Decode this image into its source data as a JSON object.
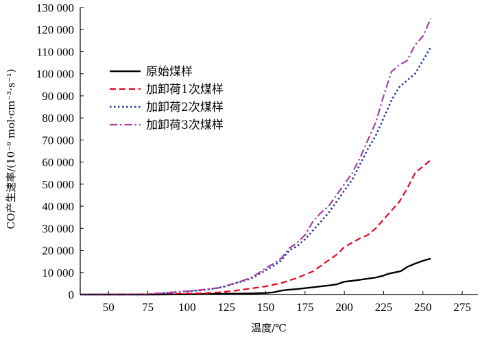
{
  "chart_data": {
    "type": "line",
    "xlabel": "温度/℃",
    "ylabel": "CO产生速率/(10⁻⁹ mol·cm⁻³·s⁻¹)",
    "xlim": [
      32,
      285
    ],
    "ylim": [
      0,
      130000
    ],
    "xticks": [
      50,
      75,
      100,
      125,
      150,
      175,
      200,
      225,
      250,
      275
    ],
    "xtick_labels": [
      "50",
      "75",
      "100",
      "125",
      "150",
      "175",
      "200",
      "225",
      "250",
      "275"
    ],
    "yticks": [
      0,
      10000,
      20000,
      30000,
      40000,
      50000,
      60000,
      70000,
      80000,
      90000,
      100000,
      110000,
      120000,
      130000
    ],
    "ytick_labels": [
      "0",
      "10 000",
      "20 000",
      "30 000",
      "40 000",
      "50 000",
      "60 000",
      "70 000",
      "80 000",
      "90 000",
      "100 000",
      "110 000",
      "120 000",
      "130 000"
    ],
    "grid": false,
    "legend_position": "upper-left",
    "series": [
      {
        "name": "原始煤样",
        "color": "#000000",
        "dash": "solid",
        "points": [
          [
            32,
            0
          ],
          [
            80,
            0
          ],
          [
            100,
            100
          ],
          [
            120,
            300
          ],
          [
            140,
            500
          ],
          [
            150,
            700
          ],
          [
            155,
            1000
          ],
          [
            160,
            1800
          ],
          [
            165,
            2200
          ],
          [
            170,
            2500
          ],
          [
            175,
            2900
          ],
          [
            180,
            3300
          ],
          [
            185,
            3700
          ],
          [
            190,
            4100
          ],
          [
            195,
            4600
          ],
          [
            200,
            5800
          ],
          [
            205,
            6200
          ],
          [
            210,
            6700
          ],
          [
            215,
            7200
          ],
          [
            220,
            7700
          ],
          [
            225,
            8600
          ],
          [
            228,
            9400
          ],
          [
            232,
            10000
          ],
          [
            236,
            10600
          ],
          [
            240,
            12500
          ],
          [
            245,
            14000
          ],
          [
            250,
            15300
          ],
          [
            255,
            16300
          ]
        ]
      },
      {
        "name": "加卸荷1次煤样",
        "color": "#e8001c",
        "dash": "dashed",
        "points": [
          [
            32,
            0
          ],
          [
            80,
            200
          ],
          [
            100,
            400
          ],
          [
            110,
            600
          ],
          [
            120,
            1000
          ],
          [
            130,
            1700
          ],
          [
            140,
            2700
          ],
          [
            150,
            3700
          ],
          [
            160,
            5200
          ],
          [
            170,
            7500
          ],
          [
            180,
            10500
          ],
          [
            185,
            13000
          ],
          [
            190,
            15500
          ],
          [
            195,
            18000
          ],
          [
            200,
            21500
          ],
          [
            205,
            23500
          ],
          [
            210,
            25500
          ],
          [
            215,
            27000
          ],
          [
            220,
            30000
          ],
          [
            225,
            34000
          ],
          [
            230,
            38000
          ],
          [
            235,
            42000
          ],
          [
            240,
            48000
          ],
          [
            245,
            55000
          ],
          [
            250,
            58000
          ],
          [
            255,
            61000
          ]
        ]
      },
      {
        "name": "加卸荷2次煤样",
        "color": "#1d3aa8",
        "dash": "dotted",
        "points": [
          [
            32,
            0
          ],
          [
            75,
            0
          ],
          [
            80,
            400
          ],
          [
            90,
            900
          ],
          [
            100,
            1500
          ],
          [
            110,
            2000
          ],
          [
            120,
            3000
          ],
          [
            125,
            3800
          ],
          [
            130,
            5000
          ],
          [
            135,
            6000
          ],
          [
            140,
            7000
          ],
          [
            145,
            9000
          ],
          [
            150,
            11000
          ],
          [
            155,
            13000
          ],
          [
            160,
            15500
          ],
          [
            165,
            20000
          ],
          [
            170,
            22000
          ],
          [
            175,
            25000
          ],
          [
            180,
            29000
          ],
          [
            185,
            33000
          ],
          [
            190,
            37000
          ],
          [
            195,
            42000
          ],
          [
            200,
            47000
          ],
          [
            205,
            52000
          ],
          [
            210,
            59000
          ],
          [
            215,
            66000
          ],
          [
            220,
            72000
          ],
          [
            225,
            80000
          ],
          [
            230,
            88000
          ],
          [
            235,
            94000
          ],
          [
            240,
            97000
          ],
          [
            245,
            100000
          ],
          [
            250,
            106000
          ],
          [
            255,
            112000
          ]
        ]
      },
      {
        "name": "加卸荷3次煤样",
        "color": "#a63ca8",
        "dash": "dash-dot",
        "points": [
          [
            32,
            0
          ],
          [
            75,
            0
          ],
          [
            80,
            500
          ],
          [
            90,
            1000
          ],
          [
            100,
            1500
          ],
          [
            110,
            2200
          ],
          [
            120,
            3000
          ],
          [
            125,
            4000
          ],
          [
            130,
            5000
          ],
          [
            135,
            6200
          ],
          [
            140,
            7500
          ],
          [
            145,
            9500
          ],
          [
            150,
            12000
          ],
          [
            155,
            14000
          ],
          [
            160,
            16500
          ],
          [
            165,
            21000
          ],
          [
            170,
            23500
          ],
          [
            175,
            27000
          ],
          [
            180,
            33000
          ],
          [
            185,
            37000
          ],
          [
            190,
            40000
          ],
          [
            195,
            45000
          ],
          [
            200,
            50000
          ],
          [
            205,
            55000
          ],
          [
            210,
            62000
          ],
          [
            215,
            70000
          ],
          [
            220,
            78000
          ],
          [
            225,
            90000
          ],
          [
            230,
            101000
          ],
          [
            235,
            104000
          ],
          [
            240,
            106000
          ],
          [
            245,
            113000
          ],
          [
            250,
            117000
          ],
          [
            255,
            125000
          ]
        ]
      }
    ]
  }
}
